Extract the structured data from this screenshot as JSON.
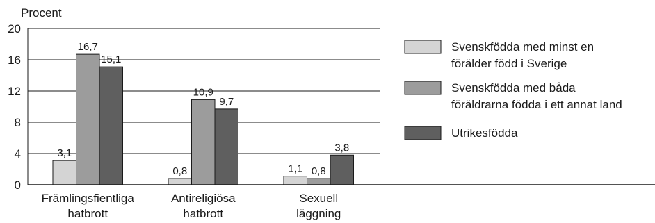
{
  "chart_data": {
    "type": "bar",
    "ylabel": "Procent",
    "ylim": [
      0,
      20
    ],
    "yticks": [
      "0",
      "4",
      "8",
      "12",
      "16",
      "20"
    ],
    "grid": true,
    "legend_position": "right",
    "categories": [
      [
        "Främlingsfientliga",
        "hatbrott"
      ],
      [
        "Antireligiösa",
        "hatbrott"
      ],
      [
        "Sexuell",
        "läggning"
      ]
    ],
    "series": [
      {
        "name": [
          "Svenskfödda med minst en",
          "förälder född i Sverige"
        ],
        "color": "#d4d4d4",
        "values": [
          3.1,
          0.8,
          1.1
        ],
        "labels": [
          "3,1",
          "0,8",
          "1,1"
        ]
      },
      {
        "name": [
          "Svenskfödda med båda",
          "föräldrarna födda i ett annat land"
        ],
        "color": "#9c9c9c",
        "values": [
          16.7,
          10.9,
          0.8
        ],
        "labels": [
          "16,7",
          "10,9",
          "0,8"
        ]
      },
      {
        "name": [
          "Utrikesfödda"
        ],
        "color": "#5f5f5f",
        "values": [
          15.1,
          9.7,
          3.8
        ],
        "labels": [
          "15,1",
          "9,7",
          "3,8"
        ]
      }
    ]
  }
}
